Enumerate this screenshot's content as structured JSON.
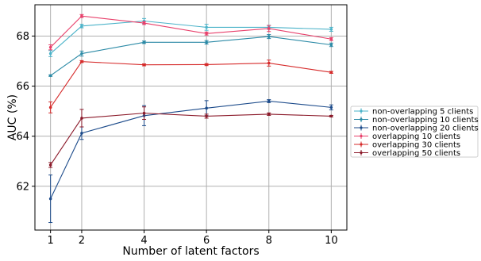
{
  "chart_data": {
    "type": "line",
    "xlabel": "Number of latent factors",
    "ylabel": "AUC (%)",
    "x": [
      1,
      2,
      4,
      6,
      8,
      10
    ],
    "xticks": [
      "1",
      "2",
      "4",
      "6",
      "8",
      "10"
    ],
    "yticks": [
      "62",
      "64",
      "66",
      "68"
    ],
    "xlim": [
      0.5,
      10.5
    ],
    "ylim": [
      60.25,
      69.25
    ],
    "grid": true,
    "legend_position": "right",
    "series": [
      {
        "name": "non-overlapping 5 clients",
        "color": "#4bb3c9",
        "values": [
          67.3,
          68.4,
          68.6,
          68.35,
          68.35,
          68.27
        ],
        "errors": [
          0.12,
          0.07,
          0.1,
          0.12,
          0.08,
          0.08
        ]
      },
      {
        "name": "non-overlapping 10 clients",
        "color": "#2b8aa6",
        "values": [
          66.42,
          67.3,
          67.75,
          67.75,
          67.98,
          67.65
        ],
        "errors": [
          0.03,
          0.1,
          0.05,
          0.07,
          0.08,
          0.07
        ]
      },
      {
        "name": "non-overlapping 20 clients",
        "color": "#1b4a8a",
        "values": [
          61.5,
          64.12,
          64.82,
          65.12,
          65.4,
          65.15
        ],
        "errors": [
          0.95,
          0.25,
          0.4,
          0.3,
          0.06,
          0.1
        ]
      },
      {
        "name": "overlapping 10 clients",
        "color": "#e8406b",
        "values": [
          67.55,
          68.8,
          68.52,
          68.1,
          68.3,
          67.88
        ],
        "errors": [
          0.1,
          0.06,
          0.06,
          0.06,
          0.12,
          0.06
        ]
      },
      {
        "name": "overlapping 30 clients",
        "color": "#d62a2a",
        "values": [
          65.15,
          66.98,
          66.85,
          66.86,
          66.92,
          66.55
        ],
        "errors": [
          0.22,
          0.04,
          0.04,
          0.04,
          0.12,
          0.04
        ]
      },
      {
        "name": "overlapping 50 clients",
        "color": "#8b1a2a",
        "values": [
          62.85,
          64.72,
          64.92,
          64.8,
          64.88,
          64.8
        ],
        "errors": [
          0.1,
          0.35,
          0.25,
          0.08,
          0.05,
          0.03
        ]
      }
    ]
  }
}
